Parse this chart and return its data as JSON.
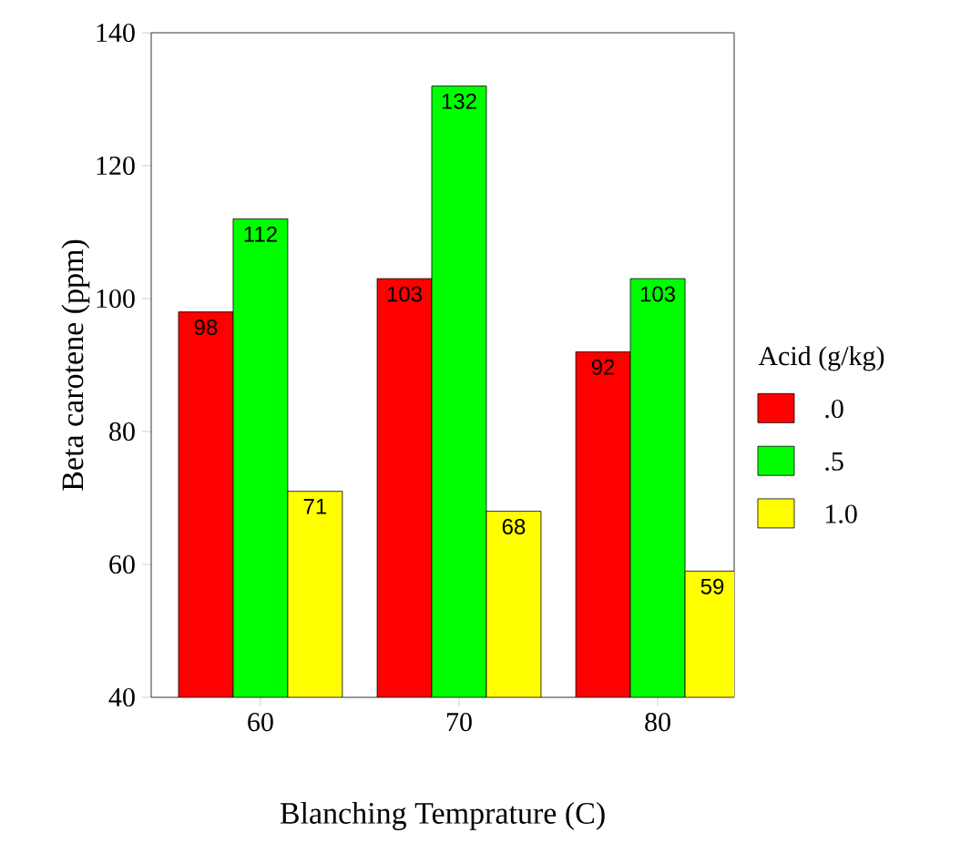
{
  "chart_data": {
    "type": "bar",
    "xlabel": "Blanching Temprature (C)",
    "ylabel": "Beta carotene (ppm)",
    "legend_title": "Acid (g/kg)",
    "categories": [
      "60",
      "70",
      "80"
    ],
    "series": [
      {
        "name": ".0",
        "color": "#ff0000",
        "values": [
          98,
          103,
          92
        ]
      },
      {
        "name": ".5",
        "color": "#00ff00",
        "values": [
          112,
          132,
          103
        ]
      },
      {
        "name": "1.0",
        "color": "#ffff00",
        "values": [
          71,
          68,
          59
        ]
      }
    ],
    "ylim": [
      40,
      140
    ],
    "yticks": [
      40,
      60,
      80,
      100,
      120,
      140
    ],
    "data_labels": true,
    "legend": "right",
    "grid": false
  }
}
